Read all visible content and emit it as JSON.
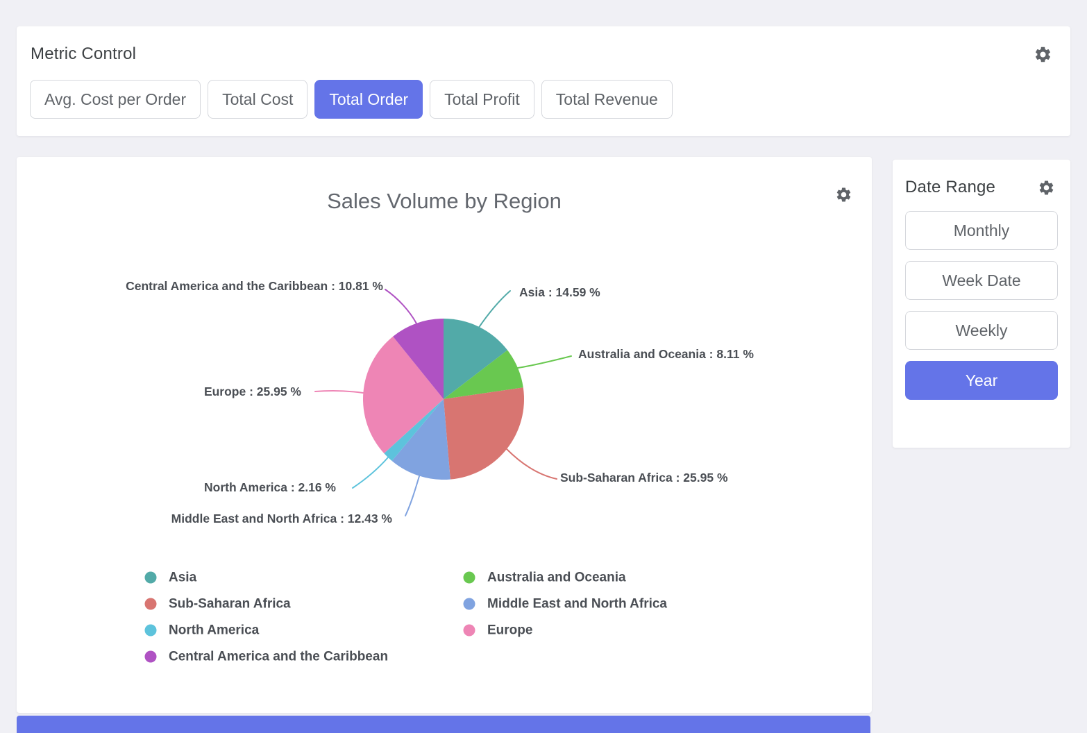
{
  "page": {
    "background": "#f0f0f5",
    "accent": "#6474e8",
    "partial_widget_color": "#6474e8"
  },
  "metric_control": {
    "title": "Metric Control",
    "buttons": [
      {
        "label": "Avg. Cost per Order",
        "selected": false
      },
      {
        "label": "Total Cost",
        "selected": false
      },
      {
        "label": "Total Order",
        "selected": true
      },
      {
        "label": "Total Profit",
        "selected": false
      },
      {
        "label": "Total Revenue",
        "selected": false
      }
    ]
  },
  "date_range": {
    "title": "Date Range",
    "buttons": [
      {
        "label": "Monthly",
        "selected": false
      },
      {
        "label": "Week Date",
        "selected": false
      },
      {
        "label": "Weekly",
        "selected": false
      },
      {
        "label": "Year",
        "selected": true
      }
    ]
  },
  "chart_data": {
    "type": "pie",
    "title": "Sales Volume by Region",
    "unit": "%",
    "label_format": "{name} : {value} %",
    "legend_position": "bottom",
    "slices": [
      {
        "name": "Asia",
        "value": 14.59,
        "color": "#52aaa8"
      },
      {
        "name": "Australia and Oceania",
        "value": 8.11,
        "color": "#69c850"
      },
      {
        "name": "Sub-Saharan Africa",
        "value": 25.95,
        "color": "#d87571"
      },
      {
        "name": "Middle East and North Africa",
        "value": 12.43,
        "color": "#80a3e0"
      },
      {
        "name": "North America",
        "value": 2.16,
        "color": "#5dc3dc"
      },
      {
        "name": "Europe",
        "value": 25.95,
        "color": "#ee85b5"
      },
      {
        "name": "Central America and the Caribbean",
        "value": 10.81,
        "color": "#af52c3"
      }
    ]
  }
}
